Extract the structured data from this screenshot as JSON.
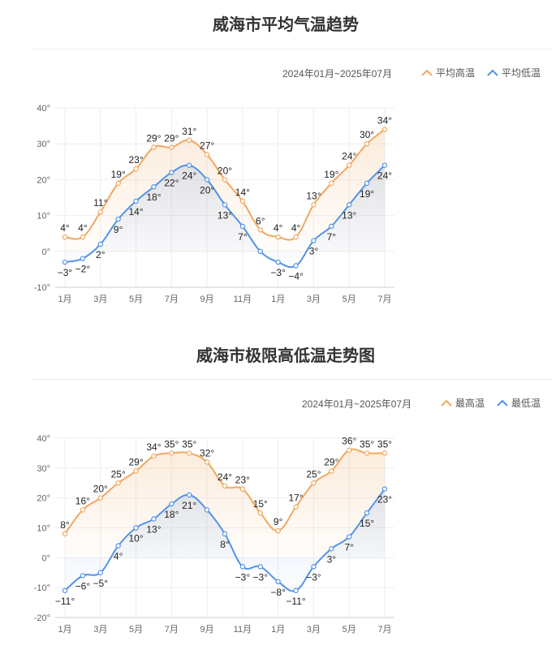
{
  "colors": {
    "high": "#f0a860",
    "low": "#5393e6",
    "grid": "#eeeeee"
  },
  "panels": [
    {
      "title": "威海市平均气温趋势",
      "range": "2024年01月~2025年07月",
      "legend": [
        "平均高温",
        "平均低温"
      ]
    },
    {
      "title": "威海市极限高低温走势图",
      "range": "2024年01月~2025年07月",
      "legend": [
        "最高温",
        "最低温"
      ]
    }
  ],
  "chart_data": [
    {
      "type": "line",
      "title": "威海市平均气温趋势",
      "x": [
        "1月",
        "2月",
        "3月",
        "4月",
        "5月",
        "6月",
        "7月",
        "8月",
        "9月",
        "10月",
        "11月",
        "12月",
        "1月",
        "2月",
        "3月",
        "4月",
        "5月",
        "6月",
        "7月"
      ],
      "x_tick_labels": [
        "1月",
        "3月",
        "5月",
        "7月",
        "9月",
        "11月",
        "1月",
        "3月",
        "5月",
        "7月"
      ],
      "y_ticks": [
        "-10°",
        "0°",
        "10°",
        "20°",
        "30°",
        "40°"
      ],
      "ylim": [
        -10,
        40
      ],
      "grid": true,
      "legend_position": "top-right",
      "series": [
        {
          "name": "平均高温",
          "values": [
            4,
            4,
            11,
            19,
            23,
            29,
            29,
            31,
            27,
            20,
            14,
            6,
            4,
            4,
            13,
            19,
            24,
            30,
            34
          ]
        },
        {
          "name": "平均低温",
          "values": [
            -3,
            -2,
            2,
            9,
            14,
            18,
            22,
            24,
            20,
            13,
            7,
            0,
            -3,
            -4,
            3,
            7,
            13,
            19,
            24
          ]
        }
      ],
      "low_labels_hidden": [
        11
      ]
    },
    {
      "type": "line",
      "title": "威海市极限高低温走势图",
      "x": [
        "1月",
        "2月",
        "3月",
        "4月",
        "5月",
        "6月",
        "7月",
        "8月",
        "9月",
        "10月",
        "11月",
        "12月",
        "1月",
        "2月",
        "3月",
        "4月",
        "5月",
        "6月",
        "7月"
      ],
      "x_tick_labels": [
        "1月",
        "3月",
        "5月",
        "7月",
        "9月",
        "11月",
        "1月",
        "3月",
        "5月",
        "7月"
      ],
      "y_ticks": [
        "-20°",
        "-10°",
        "0°",
        "10°",
        "20°",
        "30°",
        "40°"
      ],
      "ylim": [
        -20,
        40
      ],
      "grid": true,
      "legend_position": "top-right",
      "series": [
        {
          "name": "最高温",
          "values": [
            8,
            16,
            20,
            25,
            29,
            34,
            35,
            35,
            32,
            24,
            23,
            15,
            9,
            17,
            25,
            29,
            36,
            35,
            35
          ]
        },
        {
          "name": "最低温",
          "values": [
            -11,
            -6,
            -5,
            4,
            10,
            13,
            18,
            21,
            16,
            8,
            -3,
            -3,
            -8,
            -11,
            -3,
            3,
            7,
            15,
            23
          ]
        }
      ],
      "low_labels_hidden": [
        8
      ]
    }
  ]
}
